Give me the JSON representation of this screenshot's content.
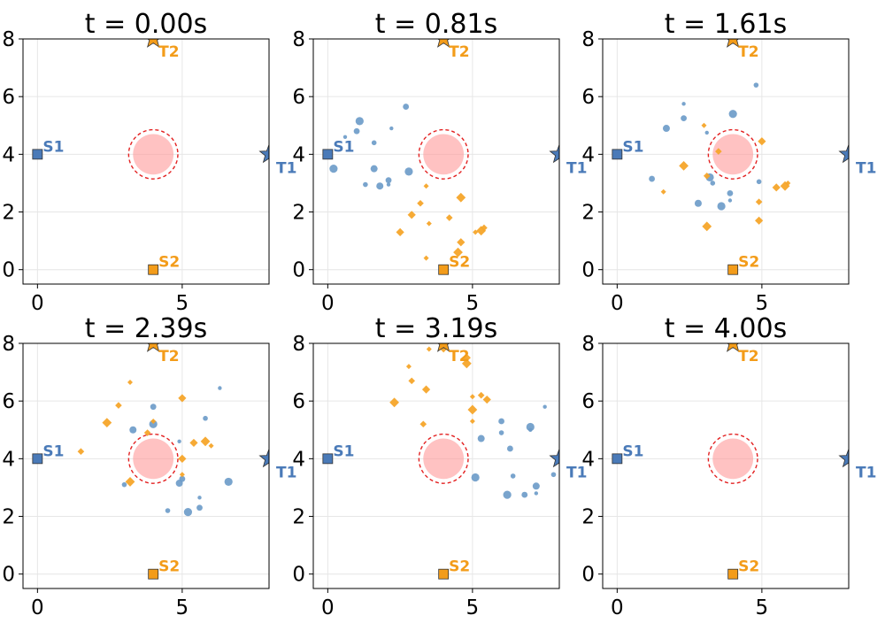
{
  "chart_data": {
    "type": "scatter",
    "colors": {
      "blue": "#4a7ab8",
      "blue_light": "#6a9ac8",
      "orange": "#f39c1a",
      "orange_light": "#f5a52a",
      "obstacle": "#ff9a9a",
      "obstacle_ring": "#e32020"
    },
    "xlim": [
      -0.5,
      8.0
    ],
    "ylim": [
      -0.5,
      8.0
    ],
    "xticks": [
      "0",
      "5"
    ],
    "yticks": [
      "0",
      "2",
      "4",
      "6",
      "8"
    ],
    "grid": true,
    "markers": {
      "S1": {
        "x": 0,
        "y": 4,
        "shape": "square",
        "color": "#4a7ab8",
        "label": "S1"
      },
      "S2": {
        "x": 4,
        "y": 0,
        "shape": "square",
        "color": "#f39c1a",
        "label": "S2"
      },
      "T1": {
        "x": 8,
        "y": 4,
        "shape": "star",
        "color": "#4a7ab8",
        "label": "T1"
      },
      "T2": {
        "x": 4,
        "y": 8,
        "shape": "star",
        "color": "#f39c1a",
        "label": "T2"
      }
    },
    "obstacle": {
      "x": 4,
      "y": 4,
      "radius": 0.7,
      "ring_radius": 0.85
    },
    "panels": [
      {
        "title": "t = 0.00s",
        "blue": [],
        "orange": []
      },
      {
        "title": "t = 0.81s",
        "blue": [
          [
            0.6,
            4.6
          ],
          [
            1.0,
            4.8
          ],
          [
            1.1,
            5.15
          ],
          [
            1.6,
            4.4
          ],
          [
            1.6,
            3.5
          ],
          [
            2.2,
            4.9
          ],
          [
            2.7,
            5.65
          ],
          [
            0.2,
            3.5
          ],
          [
            1.3,
            2.95
          ],
          [
            1.8,
            2.9
          ],
          [
            2.1,
            2.95
          ],
          [
            2.1,
            3.1
          ],
          [
            2.8,
            3.4
          ]
        ],
        "orange": [
          [
            3.4,
            2.9
          ],
          [
            3.2,
            2.3
          ],
          [
            2.9,
            1.9
          ],
          [
            4.6,
            2.5
          ],
          [
            3.5,
            1.6
          ],
          [
            4.2,
            1.8
          ],
          [
            2.5,
            1.3
          ],
          [
            5.3,
            1.35
          ],
          [
            5.1,
            1.3
          ],
          [
            5.4,
            1.45
          ],
          [
            4.6,
            0.95
          ],
          [
            4.5,
            0.6
          ],
          [
            3.4,
            0.4
          ]
        ]
      },
      {
        "title": "t = 1.61s",
        "blue": [
          [
            2.3,
            5.75
          ],
          [
            2.3,
            5.25
          ],
          [
            4.0,
            5.4
          ],
          [
            4.8,
            6.4
          ],
          [
            1.7,
            4.9
          ],
          [
            3.1,
            4.75
          ],
          [
            1.2,
            3.15
          ],
          [
            3.2,
            3.2
          ],
          [
            3.3,
            3.0
          ],
          [
            2.8,
            2.3
          ],
          [
            3.9,
            2.4
          ],
          [
            3.9,
            2.65
          ],
          [
            3.6,
            2.2
          ],
          [
            4.9,
            3.05
          ]
        ],
        "orange": [
          [
            3.0,
            5.0
          ],
          [
            3.5,
            4.1
          ],
          [
            5.0,
            4.45
          ],
          [
            2.3,
            3.6
          ],
          [
            1.6,
            2.7
          ],
          [
            3.1,
            3.25
          ],
          [
            5.5,
            2.85
          ],
          [
            5.8,
            2.9
          ],
          [
            5.9,
            3.0
          ],
          [
            4.9,
            2.35
          ],
          [
            4.9,
            1.7
          ],
          [
            3.1,
            1.5
          ]
        ]
      },
      {
        "title": "t = 2.39s",
        "blue": [
          [
            6.3,
            6.45
          ],
          [
            4.0,
            5.8
          ],
          [
            4.0,
            5.2
          ],
          [
            5.8,
            5.4
          ],
          [
            3.3,
            5.0
          ],
          [
            4.9,
            4.6
          ],
          [
            5.0,
            3.3
          ],
          [
            6.6,
            3.2
          ],
          [
            3.0,
            3.1
          ],
          [
            4.9,
            3.15
          ],
          [
            5.6,
            2.65
          ],
          [
            5.6,
            2.3
          ],
          [
            5.2,
            2.15
          ],
          [
            4.5,
            2.2
          ]
        ],
        "orange": [
          [
            3.2,
            6.65
          ],
          [
            2.8,
            5.85
          ],
          [
            5.0,
            6.1
          ],
          [
            2.4,
            5.25
          ],
          [
            4.0,
            5.3
          ],
          [
            3.8,
            4.9
          ],
          [
            5.4,
            4.55
          ],
          [
            5.8,
            4.6
          ],
          [
            6.0,
            4.45
          ],
          [
            1.5,
            4.25
          ],
          [
            5.0,
            4.0
          ],
          [
            3.2,
            3.2
          ],
          [
            5.0,
            3.45
          ]
        ]
      },
      {
        "title": "t = 3.19s",
        "blue": [
          [
            7.5,
            5.8
          ],
          [
            6.0,
            5.3
          ],
          [
            7.0,
            5.1
          ],
          [
            6.0,
            4.9
          ],
          [
            5.3,
            4.7
          ],
          [
            7.0,
            5.0
          ],
          [
            6.3,
            4.35
          ],
          [
            5.1,
            3.35
          ],
          [
            6.4,
            3.4
          ],
          [
            7.2,
            3.05
          ],
          [
            7.2,
            2.8
          ],
          [
            6.8,
            2.75
          ],
          [
            6.2,
            2.75
          ],
          [
            7.8,
            3.45
          ]
        ],
        "orange": [
          [
            3.5,
            7.8
          ],
          [
            4.0,
            7.8
          ],
          [
            4.8,
            7.5
          ],
          [
            4.8,
            7.3
          ],
          [
            2.8,
            7.2
          ],
          [
            2.9,
            6.7
          ],
          [
            3.4,
            6.4
          ],
          [
            2.3,
            5.95
          ],
          [
            5.0,
            6.15
          ],
          [
            5.3,
            6.2
          ],
          [
            5.5,
            6.05
          ],
          [
            5.0,
            5.7
          ],
          [
            5.0,
            5.3
          ],
          [
            3.3,
            5.2
          ]
        ]
      },
      {
        "title": "t = 4.00s",
        "blue": [],
        "orange": []
      }
    ]
  }
}
